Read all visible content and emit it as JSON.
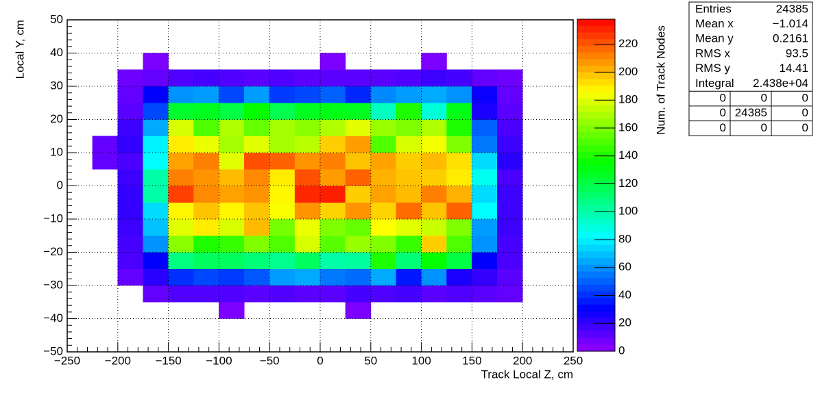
{
  "chart_data": {
    "type": "heatmap",
    "xlabel": "Track Local Z, cm",
    "ylabel": "Local Y, cm",
    "zlabel": "Num. of Track Nodes",
    "colormap": "rainbow",
    "grid": true,
    "xlim": [
      -250,
      250
    ],
    "ylim": [
      -50,
      50
    ],
    "zlim": [
      0,
      238
    ],
    "xticks": [
      {
        "value": -250,
        "label": "−250"
      },
      {
        "value": -200,
        "label": "−200"
      },
      {
        "value": -150,
        "label": "−150"
      },
      {
        "value": -100,
        "label": "−100"
      },
      {
        "value": -50,
        "label": "−50"
      },
      0,
      50,
      100,
      150,
      200,
      250
    ],
    "yticks": [
      {
        "value": -50,
        "label": "−50"
      },
      {
        "value": -40,
        "label": "−40"
      },
      {
        "value": -30,
        "label": "−30"
      },
      {
        "value": -20,
        "label": "−20"
      },
      {
        "value": -10,
        "label": "−10"
      },
      0,
      10,
      20,
      30,
      40,
      50
    ],
    "zticks": [
      0,
      20,
      40,
      60,
      80,
      100,
      120,
      140,
      160,
      180,
      200,
      220
    ],
    "x_bins": [
      -250,
      -225,
      -200,
      -175,
      -150,
      -125,
      -100,
      -75,
      -50,
      -25,
      0,
      25,
      50,
      75,
      100,
      125,
      150,
      175,
      200,
      225,
      250
    ],
    "y_bins": [
      -50,
      -45,
      -40,
      -35,
      -30,
      -25,
      -20,
      -15,
      -10,
      -5,
      0,
      5,
      10,
      15,
      20,
      25,
      30,
      35,
      40,
      45,
      50
    ],
    "z": [
      [
        0,
        0,
        0,
        0,
        0,
        0,
        0,
        0,
        0,
        0,
        0,
        0,
        0,
        0,
        0,
        0,
        0,
        0,
        0,
        0
      ],
      [
        0,
        0,
        0,
        0,
        0,
        0,
        0,
        0,
        0,
        0,
        0,
        0,
        0,
        0,
        0,
        0,
        0,
        0,
        0,
        0
      ],
      [
        0,
        0,
        0,
        0,
        0,
        0,
        5,
        0,
        0,
        0,
        0,
        5,
        0,
        0,
        0,
        0,
        0,
        0,
        0,
        0
      ],
      [
        0,
        0,
        0,
        10,
        14,
        14,
        14,
        12,
        14,
        12,
        12,
        16,
        14,
        16,
        12,
        14,
        12,
        10,
        0,
        0
      ],
      [
        0,
        0,
        10,
        22,
        40,
        45,
        42,
        48,
        62,
        65,
        55,
        52,
        65,
        35,
        60,
        25,
        20,
        12,
        0,
        0
      ],
      [
        0,
        0,
        15,
        30,
        108,
        115,
        115,
        110,
        105,
        115,
        100,
        102,
        140,
        110,
        135,
        120,
        30,
        15,
        0,
        0
      ],
      [
        0,
        0,
        16,
        60,
        162,
        140,
        145,
        160,
        150,
        178,
        152,
        165,
        160,
        145,
        196,
        150,
        60,
        16,
        0,
        0
      ],
      [
        0,
        0,
        18,
        70,
        180,
        190,
        178,
        200,
        158,
        182,
        160,
        155,
        186,
        180,
        175,
        160,
        62,
        18,
        0,
        0
      ],
      [
        0,
        0,
        20,
        75,
        188,
        198,
        188,
        198,
        185,
        208,
        195,
        208,
        195,
        216,
        198,
        218,
        82,
        18,
        0,
        0
      ],
      [
        0,
        0,
        20,
        100,
        225,
        210,
        205,
        208,
        188,
        230,
        232,
        196,
        205,
        200,
        212,
        202,
        75,
        18,
        0,
        0
      ],
      [
        0,
        0,
        18,
        100,
        212,
        208,
        200,
        210,
        190,
        222,
        206,
        218,
        202,
        198,
        196,
        190,
        85,
        15,
        0,
        0
      ],
      [
        0,
        10,
        15,
        82,
        205,
        212,
        180,
        222,
        218,
        208,
        212,
        198,
        205,
        196,
        200,
        192,
        75,
        22,
        0,
        0
      ],
      [
        0,
        10,
        20,
        80,
        190,
        182,
        168,
        180,
        168,
        172,
        196,
        206,
        150,
        178,
        184,
        160,
        55,
        18,
        0,
        0
      ],
      [
        0,
        0,
        18,
        65,
        178,
        150,
        170,
        155,
        168,
        162,
        170,
        180,
        165,
        160,
        170,
        140,
        50,
        15,
        0,
        0
      ],
      [
        0,
        0,
        12,
        45,
        125,
        128,
        120,
        135,
        118,
        128,
        130,
        128,
        95,
        140,
        90,
        130,
        25,
        12,
        0,
        0
      ],
      [
        0,
        0,
        10,
        30,
        60,
        62,
        45,
        62,
        42,
        45,
        50,
        38,
        58,
        62,
        65,
        60,
        28,
        10,
        0,
        0
      ],
      [
        0,
        0,
        8,
        10,
        14,
        16,
        14,
        12,
        14,
        12,
        12,
        12,
        12,
        14,
        18,
        16,
        10,
        8,
        0,
        0
      ],
      [
        0,
        0,
        0,
        5,
        0,
        0,
        0,
        0,
        0,
        0,
        5,
        0,
        0,
        0,
        5,
        0,
        0,
        0,
        0,
        0
      ],
      [
        0,
        0,
        0,
        0,
        0,
        0,
        0,
        0,
        0,
        0,
        0,
        0,
        0,
        0,
        0,
        0,
        0,
        0,
        0,
        0
      ],
      [
        0,
        0,
        0,
        0,
        0,
        0,
        0,
        0,
        0,
        0,
        0,
        0,
        0,
        0,
        0,
        0,
        0,
        0,
        0,
        0
      ]
    ],
    "stats": {
      "rows": [
        [
          "Entries",
          "24385"
        ],
        [
          "Mean x",
          "−1.014"
        ],
        [
          "Mean y",
          "0.2161"
        ],
        [
          "RMS x",
          "93.5"
        ],
        [
          "RMS y",
          "14.41"
        ],
        [
          "Integral",
          "2.438e+04"
        ]
      ],
      "grid": [
        [
          "0",
          "0",
          "0"
        ],
        [
          "0",
          "24385",
          "0"
        ],
        [
          "0",
          "0",
          "0"
        ]
      ]
    }
  }
}
